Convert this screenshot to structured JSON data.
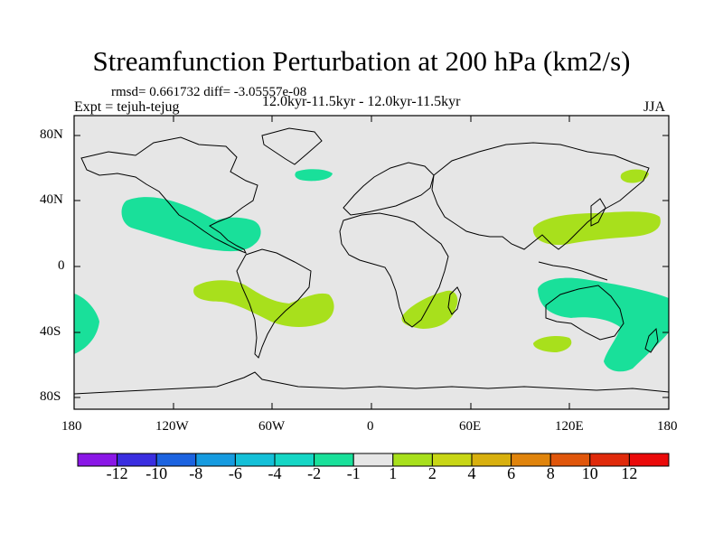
{
  "title": "Streamfunction Perturbation at 200 hPa (km2/s)",
  "stats": "rmsd= 0.661732  diff= -3.05557e-08",
  "experiment": "Expt = tejuh-tejug",
  "period": "12.0kyr-11.5kyr - 12.0kyr-11.5kyr",
  "season": "JJA",
  "y_ticks": [
    "80N",
    "40N",
    "0",
    "40S",
    "80S"
  ],
  "x_ticks": [
    "180",
    "120W",
    "60W",
    "0",
    "60E",
    "120E",
    "180"
  ],
  "colorbar": {
    "labels": [
      "-12",
      "-10",
      "-8",
      "-6",
      "-4",
      "-2",
      "-1",
      "1",
      "2",
      "4",
      "6",
      "8",
      "10",
      "12"
    ],
    "colors": [
      "#8a17e6",
      "#3a2ee0",
      "#1c63e0",
      "#169be0",
      "#14c0d8",
      "#15d6c5",
      "#19e09a",
      "#e6e6e6",
      "#a8e01c",
      "#c8d615",
      "#d8b00e",
      "#e0840c",
      "#e0560b",
      "#e02a0b",
      "#ea0a0a"
    ]
  },
  "anomalies": [
    {
      "region": "north-pacific-east",
      "sign": "negative",
      "bin": "-2 to -1"
    },
    {
      "region": "north-atlantic",
      "sign": "negative",
      "bin": "-2 to -1"
    },
    {
      "region": "caribbean",
      "sign": "negative",
      "bin": "-2 to -1"
    },
    {
      "region": "south-pacific-east",
      "sign": "negative",
      "bin": "-2 to -1"
    },
    {
      "region": "australia",
      "sign": "negative",
      "bin": "-2 to -1"
    },
    {
      "region": "south-pacific-west",
      "sign": "negative",
      "bin": "-2 to -1"
    },
    {
      "region": "kamchatka",
      "sign": "positive",
      "bin": "1 to 2"
    },
    {
      "region": "east-asia-pacific",
      "sign": "positive",
      "bin": "1 to 2"
    },
    {
      "region": "south-america",
      "sign": "positive",
      "bin": "1 to 2"
    },
    {
      "region": "south-atlantic",
      "sign": "positive",
      "bin": "1 to 2"
    },
    {
      "region": "southern-africa",
      "sign": "positive",
      "bin": "1 to 2"
    },
    {
      "region": "south-indian-ocean",
      "sign": "positive",
      "bin": "1 to 2"
    }
  ]
}
